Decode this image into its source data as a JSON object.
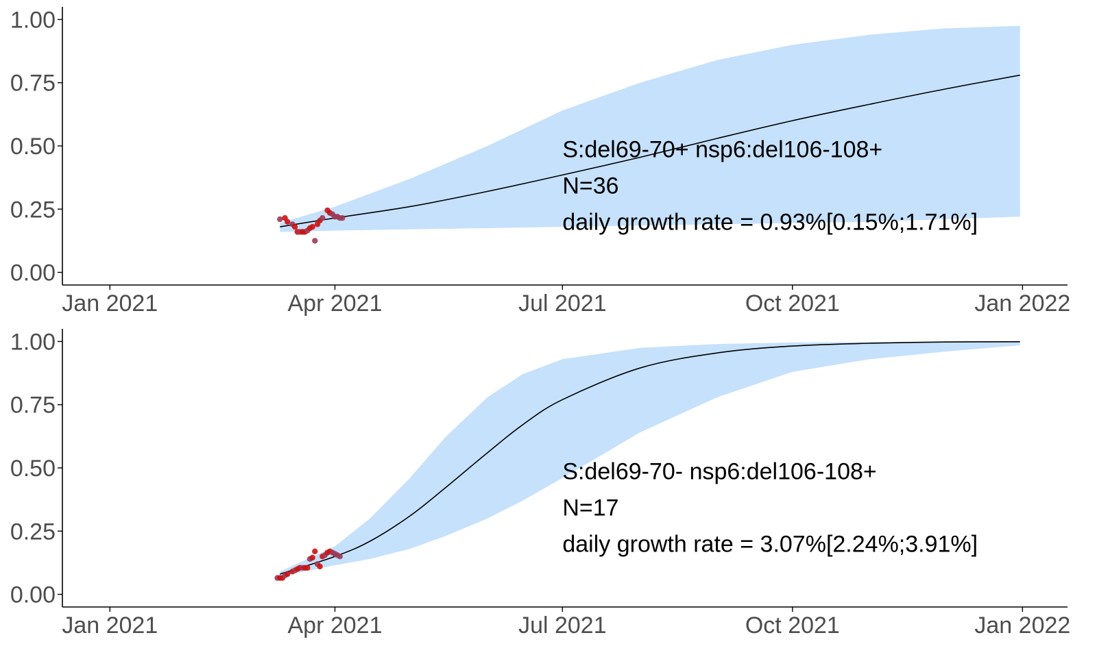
{
  "colors": {
    "ribbon": "#c6e1fb",
    "line": "#000000",
    "points": "#cc1111",
    "points_alt": "#9c3a56",
    "axis": "#000000",
    "tick_text": "#4d4d4d"
  },
  "chart_data": [
    {
      "type": "line",
      "panel": "top",
      "title": "",
      "xlabel": "",
      "ylabel": "",
      "x_ticks": [
        "Jan 2021",
        "Apr 2021",
        "Jul 2021",
        "Oct 2021",
        "Jan 2022"
      ],
      "x_tick_dates": [
        "2021-01-01",
        "2021-04-01",
        "2021-07-01",
        "2021-10-01",
        "2022-01-01"
      ],
      "y_ticks": [
        "0.00",
        "0.25",
        "0.50",
        "0.75",
        "1.00"
      ],
      "ylim": [
        0,
        1
      ],
      "xlim": [
        "2020-12-13",
        "2022-01-19"
      ],
      "grid": false,
      "annotation": {
        "lines": [
          "S:del69-70+  nsp6:del106-108+",
          "N=36",
          "daily growth rate = 0.93%[0.15%;1.71%]"
        ]
      },
      "series": [
        {
          "kind": "fit",
          "x": [
            "2021-03-10",
            "2021-04-01",
            "2021-05-01",
            "2021-06-01",
            "2021-07-01",
            "2021-08-01",
            "2021-09-01",
            "2021-10-01",
            "2021-11-01",
            "2021-12-01",
            "2021-12-31"
          ],
          "y": [
            0.18,
            0.215,
            0.26,
            0.32,
            0.385,
            0.455,
            0.53,
            0.6,
            0.665,
            0.725,
            0.78
          ],
          "lower": [
            0.16,
            0.165,
            0.17,
            0.175,
            0.18,
            0.185,
            0.19,
            0.195,
            0.2,
            0.21,
            0.22
          ],
          "upper": [
            0.195,
            0.26,
            0.37,
            0.5,
            0.64,
            0.75,
            0.84,
            0.9,
            0.94,
            0.965,
            0.975
          ]
        },
        {
          "kind": "observed",
          "x": [
            "2021-03-10",
            "2021-03-12",
            "2021-03-13",
            "2021-03-15",
            "2021-03-16",
            "2021-03-17",
            "2021-03-18",
            "2021-03-19",
            "2021-03-20",
            "2021-03-21",
            "2021-03-22",
            "2021-03-23",
            "2021-03-24",
            "2021-03-25",
            "2021-03-26",
            "2021-03-27",
            "2021-03-29",
            "2021-03-30",
            "2021-03-31",
            "2021-04-01",
            "2021-04-02",
            "2021-04-03",
            "2021-04-04"
          ],
          "y": [
            0.21,
            0.215,
            0.2,
            0.19,
            0.18,
            0.16,
            0.16,
            0.16,
            0.16,
            0.165,
            0.175,
            0.18,
            0.125,
            0.19,
            0.205,
            0.215,
            0.245,
            0.235,
            0.23,
            0.22,
            0.22,
            0.215,
            0.215
          ]
        }
      ]
    },
    {
      "type": "line",
      "panel": "bottom",
      "title": "",
      "xlabel": "",
      "ylabel": "",
      "x_ticks": [
        "Jan 2021",
        "Apr 2021",
        "Jul 2021",
        "Oct 2021",
        "Jan 2022"
      ],
      "x_tick_dates": [
        "2021-01-01",
        "2021-04-01",
        "2021-07-01",
        "2021-10-01",
        "2022-01-01"
      ],
      "y_ticks": [
        "0.00",
        "0.25",
        "0.50",
        "0.75",
        "1.00"
      ],
      "ylim": [
        0,
        1
      ],
      "xlim": [
        "2020-12-13",
        "2022-01-19"
      ],
      "grid": false,
      "annotation": {
        "lines": [
          "S:del69-70-  nsp6:del106-108+",
          "N=17",
          "daily growth rate = 3.07%[2.24%;3.91%]"
        ]
      },
      "series": [
        {
          "kind": "fit",
          "x": [
            "2021-03-10",
            "2021-04-01",
            "2021-04-15",
            "2021-05-01",
            "2021-05-15",
            "2021-06-01",
            "2021-06-15",
            "2021-07-01",
            "2021-08-01",
            "2021-09-01",
            "2021-10-01",
            "2021-11-01",
            "2021-12-01",
            "2021-12-31"
          ],
          "y": [
            0.08,
            0.15,
            0.21,
            0.31,
            0.42,
            0.56,
            0.67,
            0.77,
            0.895,
            0.955,
            0.982,
            0.993,
            0.998,
            0.999
          ],
          "lower": [
            0.07,
            0.115,
            0.14,
            0.18,
            0.23,
            0.3,
            0.37,
            0.46,
            0.64,
            0.78,
            0.88,
            0.93,
            0.96,
            0.985
          ],
          "upper": [
            0.09,
            0.19,
            0.3,
            0.46,
            0.62,
            0.78,
            0.87,
            0.93,
            0.975,
            0.99,
            0.996,
            0.998,
            0.999,
            1.0
          ]
        },
        {
          "kind": "observed",
          "x": [
            "2021-03-09",
            "2021-03-10",
            "2021-03-11",
            "2021-03-12",
            "2021-03-13",
            "2021-03-15",
            "2021-03-16",
            "2021-03-17",
            "2021-03-18",
            "2021-03-19",
            "2021-03-20",
            "2021-03-21",
            "2021-03-22",
            "2021-03-23",
            "2021-03-24",
            "2021-03-25",
            "2021-03-26",
            "2021-03-27",
            "2021-03-28",
            "2021-03-29",
            "2021-03-30",
            "2021-03-31",
            "2021-04-01",
            "2021-04-02",
            "2021-04-03"
          ],
          "y": [
            0.065,
            0.065,
            0.065,
            0.075,
            0.08,
            0.09,
            0.095,
            0.1,
            0.105,
            0.105,
            0.105,
            0.105,
            0.14,
            0.145,
            0.17,
            0.12,
            0.11,
            0.15,
            0.155,
            0.165,
            0.17,
            0.165,
            0.16,
            0.155,
            0.15
          ]
        }
      ]
    }
  ]
}
